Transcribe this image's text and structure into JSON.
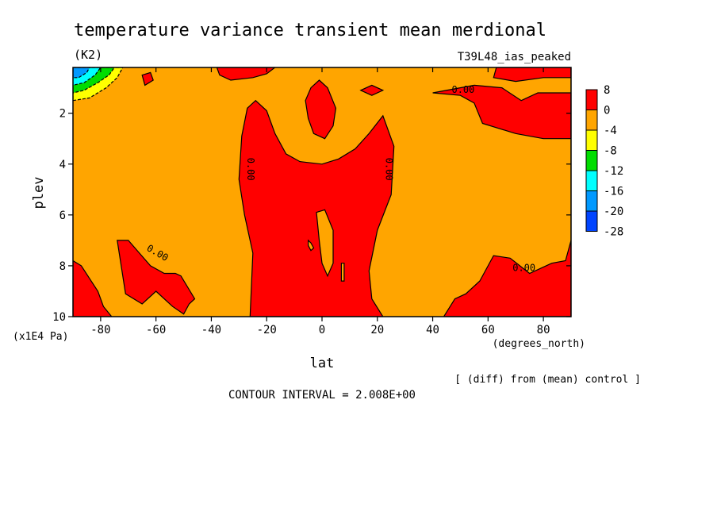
{
  "chart_data": {
    "type": "heatmap",
    "title": "temperature variance transient mean merdional",
    "units": "(K2)",
    "run_label": "T39L48_ias_peaked",
    "xlabel": "lat",
    "xunits": "(degrees_north)",
    "ylabel": "plev",
    "yunits": "(x1E4 Pa)",
    "xlim": [
      -90,
      90
    ],
    "ylim": [
      10,
      0.2
    ],
    "xticks": [
      -80,
      -60,
      -40,
      -20,
      0,
      20,
      40,
      60,
      80
    ],
    "yticks": [
      2,
      4,
      6,
      8,
      10
    ],
    "xtick_labels": [
      "-80",
      "-60",
      "-40",
      "-20",
      "0",
      "20",
      "40",
      "60",
      "80"
    ],
    "ytick_labels": [
      "2",
      "4",
      "6",
      "8",
      "10"
    ],
    "contour_interval_text": "CONTOUR INTERVAL = 2.008E+00",
    "diff_note": "[ (diff) from (mean) control ]",
    "contour_labels": [
      {
        "text": "0.00",
        "lat": -27,
        "plev": 4.2
      },
      {
        "text": "0.00",
        "lat": 23,
        "plev": 4.2
      },
      {
        "text": "0.00",
        "lat": -60,
        "plev": 7.6
      },
      {
        "text": "0.00",
        "lat": 51,
        "plev": 1.2
      },
      {
        "text": "0.00",
        "lat": 73,
        "plev": 8.2
      }
    ],
    "legend": {
      "labels": [
        "8",
        "0",
        "-4",
        "-8",
        "-12",
        "-16",
        "-20",
        "-28"
      ],
      "colors": [
        "#ff0000",
        "#ffa500",
        "#ffff00",
        "#00dd00",
        "#00ffff",
        "#0099ff",
        "#0044ff"
      ]
    },
    "background_color": "#ffa500",
    "positive_color": "#ff0000",
    "regions": [
      {
        "name": "central-positive",
        "color": "#ff0000",
        "points": [
          [
            -26,
            10
          ],
          [
            -25,
            7.5
          ],
          [
            -28,
            6
          ],
          [
            -30,
            4.6
          ],
          [
            -29,
            2.9
          ],
          [
            -27,
            1.8
          ],
          [
            -24,
            1.5
          ],
          [
            -20,
            1.9
          ],
          [
            -17,
            2.8
          ],
          [
            -13,
            3.6
          ],
          [
            -8,
            3.9
          ],
          [
            0,
            4.0
          ],
          [
            6,
            3.8
          ],
          [
            12,
            3.4
          ],
          [
            17,
            2.8
          ],
          [
            22,
            2.1
          ],
          [
            26,
            3.3
          ],
          [
            25,
            5.2
          ],
          [
            20,
            6.6
          ],
          [
            17,
            8.2
          ],
          [
            18,
            9.3
          ],
          [
            22,
            10
          ]
        ]
      },
      {
        "name": "upper-blob",
        "color": "#ff0000",
        "points": [
          [
            -6,
            1.5
          ],
          [
            -5,
            2.2
          ],
          [
            -3,
            2.8
          ],
          [
            1,
            3.0
          ],
          [
            4,
            2.5
          ],
          [
            5,
            1.8
          ],
          [
            2,
            1.0
          ],
          [
            -1,
            0.7
          ],
          [
            -4,
            1.0
          ]
        ]
      },
      {
        "name": "top-left-strip",
        "color": "#ff0000",
        "points": [
          [
            -38,
            0.2
          ],
          [
            -37,
            0.5
          ],
          [
            -33,
            0.7
          ],
          [
            -25,
            0.6
          ],
          [
            -20,
            0.45
          ],
          [
            -17,
            0.2
          ]
        ]
      },
      {
        "name": "top-right-strip",
        "color": "#ff0000",
        "points": [
          [
            63,
            0.2
          ],
          [
            62,
            0.6
          ],
          [
            70,
            0.75
          ],
          [
            80,
            0.6
          ],
          [
            90,
            0.6
          ],
          [
            90,
            0.2
          ]
        ]
      },
      {
        "name": "small-top-left",
        "color": "#ff0000",
        "points": [
          [
            -65,
            0.5
          ],
          [
            -64,
            0.9
          ],
          [
            -61,
            0.7
          ],
          [
            -62,
            0.4
          ]
        ]
      },
      {
        "name": "small-top-mid",
        "color": "#ff0000",
        "points": [
          [
            14,
            1.1
          ],
          [
            18,
            1.3
          ],
          [
            22,
            1.1
          ],
          [
            18,
            0.9
          ]
        ]
      },
      {
        "name": "right-upper",
        "color": "#ff0000",
        "points": [
          [
            40,
            1.2
          ],
          [
            50,
            1.3
          ],
          [
            55,
            1.6
          ],
          [
            58,
            2.4
          ],
          [
            70,
            2.8
          ],
          [
            80,
            3.0
          ],
          [
            90,
            3.0
          ],
          [
            90,
            1.2
          ],
          [
            78,
            1.2
          ],
          [
            72,
            1.5
          ],
          [
            65,
            1.0
          ],
          [
            55,
            0.9
          ]
        ]
      },
      {
        "name": "right-lower",
        "color": "#ff0000",
        "points": [
          [
            90,
            7.0
          ],
          [
            88,
            7.8
          ],
          [
            83,
            7.9
          ],
          [
            75,
            8.3
          ],
          [
            68,
            7.7
          ],
          [
            62,
            7.6
          ],
          [
            57,
            8.6
          ],
          [
            52,
            9.1
          ],
          [
            48,
            9.3
          ],
          [
            44,
            10
          ],
          [
            90,
            10
          ]
        ]
      },
      {
        "name": "left-lower",
        "color": "#ff0000",
        "points": [
          [
            -90,
            7.8
          ],
          [
            -87,
            8.0
          ],
          [
            -84,
            8.5
          ],
          [
            -81,
            9.0
          ],
          [
            -79,
            9.6
          ],
          [
            -76,
            10
          ],
          [
            -90,
            10
          ]
        ]
      },
      {
        "name": "left-middle",
        "color": "#ff0000",
        "points": [
          [
            -74,
            7.0
          ],
          [
            -71,
            9.1
          ],
          [
            -65,
            9.5
          ],
          [
            -60,
            9.0
          ],
          [
            -54,
            9.6
          ],
          [
            -50,
            9.9
          ],
          [
            -48,
            9.5
          ],
          [
            -46,
            9.3
          ],
          [
            -51,
            8.4
          ],
          [
            -53,
            8.3
          ],
          [
            -57,
            8.3
          ],
          [
            -62,
            8.0
          ],
          [
            -66,
            7.5
          ],
          [
            -70,
            7.0
          ]
        ]
      },
      {
        "name": "orange-hole-1",
        "color": "#ffa500",
        "points": [
          [
            -2,
            5.9
          ],
          [
            1,
            5.8
          ],
          [
            4,
            6.6
          ],
          [
            4,
            7.9
          ],
          [
            2,
            8.4
          ],
          [
            0,
            7.9
          ],
          [
            -1,
            7.0
          ]
        ]
      },
      {
        "name": "orange-hole-2",
        "color": "#ffa500",
        "points": [
          [
            -5,
            7.0
          ],
          [
            -4,
            7.1
          ],
          [
            -3,
            7.3
          ],
          [
            -4,
            7.4
          ],
          [
            -5,
            7.2
          ]
        ]
      },
      {
        "name": "orange-sliver",
        "color": "#ffa500",
        "points": [
          [
            7,
            7.9
          ],
          [
            8,
            7.9
          ],
          [
            8,
            8.6
          ],
          [
            7,
            8.6
          ]
        ]
      },
      {
        "name": "cold-yellow",
        "color": "#ffff00",
        "points": [
          [
            -90,
            0.2
          ],
          [
            -72,
            0.2
          ],
          [
            -74,
            0.6
          ],
          [
            -78,
            1.0
          ],
          [
            -84,
            1.4
          ],
          [
            -90,
            1.5
          ]
        ]
      },
      {
        "name": "cold-green",
        "color": "#00dd00",
        "points": [
          [
            -90,
            0.2
          ],
          [
            -75,
            0.2
          ],
          [
            -77,
            0.5
          ],
          [
            -81,
            0.8
          ],
          [
            -86,
            1.1
          ],
          [
            -90,
            1.2
          ]
        ]
      },
      {
        "name": "cold-lightblue",
        "color": "#00ffff",
        "points": [
          [
            -90,
            0.2
          ],
          [
            -80,
            0.2
          ],
          [
            -82,
            0.5
          ],
          [
            -86,
            0.8
          ],
          [
            -90,
            0.9
          ]
        ]
      },
      {
        "name": "cold-blue",
        "color": "#0099ff",
        "points": [
          [
            -90,
            0.2
          ],
          [
            -84,
            0.2
          ],
          [
            -85,
            0.4
          ],
          [
            -88,
            0.6
          ],
          [
            -90,
            0.6
          ]
        ]
      }
    ]
  }
}
